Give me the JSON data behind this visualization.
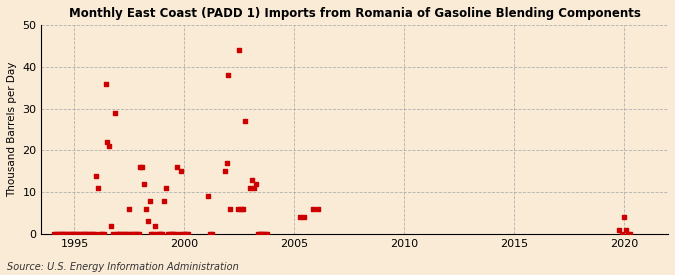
{
  "title": "Monthly East Coast (PADD 1) Imports from Romania of Gasoline Blending Components",
  "ylabel": "Thousand Barrels per Day",
  "source": "Source: U.S. Energy Information Administration",
  "background_color": "#faebd7",
  "plot_background_color": "#faebd7",
  "marker_color": "#cc0000",
  "marker_size": 12,
  "xlim": [
    1993.5,
    2022
  ],
  "ylim": [
    0,
    50
  ],
  "xticks": [
    1995,
    2000,
    2005,
    2010,
    2015,
    2020
  ],
  "yticks": [
    0,
    10,
    20,
    30,
    40,
    50
  ],
  "scatter_x": [
    1994.08,
    1994.17,
    1994.25,
    1994.33,
    1994.42,
    1994.5,
    1994.58,
    1994.67,
    1994.75,
    1994.83,
    1994.92,
    1995.0,
    1995.08,
    1995.17,
    1995.25,
    1995.33,
    1995.42,
    1995.5,
    1995.58,
    1995.67,
    1995.75,
    1995.83,
    1995.92,
    1996.0,
    1996.08,
    1996.17,
    1996.25,
    1996.33,
    1996.42,
    1996.5,
    1996.58,
    1996.67,
    1996.75,
    1996.83,
    1996.92,
    1997.0,
    1997.08,
    1997.17,
    1997.25,
    1997.33,
    1997.42,
    1997.5,
    1997.58,
    1997.67,
    1997.75,
    1997.83,
    1997.92,
    1998.0,
    1998.08,
    1998.17,
    1998.25,
    1998.33,
    1998.42,
    1998.5,
    1998.58,
    1998.67,
    1998.75,
    1998.83,
    1998.92,
    1999.0,
    1999.08,
    1999.17,
    1999.25,
    1999.33,
    1999.42,
    1999.5,
    1999.58,
    1999.67,
    1999.75,
    1999.83,
    1999.92,
    2000.0,
    2000.08,
    2000.17,
    2001.08,
    2001.17,
    2001.25,
    2001.83,
    2001.92,
    2002.0,
    2002.08,
    2002.42,
    2002.5,
    2002.58,
    2002.67,
    2002.75,
    2003.0,
    2003.08,
    2003.17,
    2003.25,
    2003.33,
    2003.42,
    2003.5,
    2003.58,
    2003.67,
    2003.75,
    2005.25,
    2005.42,
    2005.83,
    2006.08,
    2019.75,
    2019.92,
    2020.0,
    2020.08,
    2020.17,
    2020.25
  ],
  "scatter_y": [
    0,
    0,
    0,
    0,
    0,
    0,
    0,
    0,
    0,
    0,
    0,
    0,
    0,
    0,
    0,
    0,
    0,
    0,
    0,
    0,
    0,
    0,
    0,
    14,
    11,
    0,
    0,
    0,
    36,
    22,
    21,
    2,
    0,
    29,
    0,
    0,
    0,
    0,
    0,
    0,
    0,
    6,
    0,
    0,
    0,
    0,
    0,
    16,
    16,
    12,
    6,
    3,
    8,
    0,
    0,
    2,
    0,
    0,
    0,
    0,
    8,
    11,
    0,
    0,
    0,
    0,
    0,
    16,
    0,
    15,
    0,
    0,
    0,
    0,
    9,
    0,
    0,
    15,
    17,
    38,
    6,
    6,
    44,
    6,
    6,
    27,
    11,
    13,
    11,
    12,
    0,
    0,
    0,
    0,
    0,
    0,
    4,
    4,
    6,
    6,
    1,
    0,
    4,
    1,
    0,
    0
  ]
}
